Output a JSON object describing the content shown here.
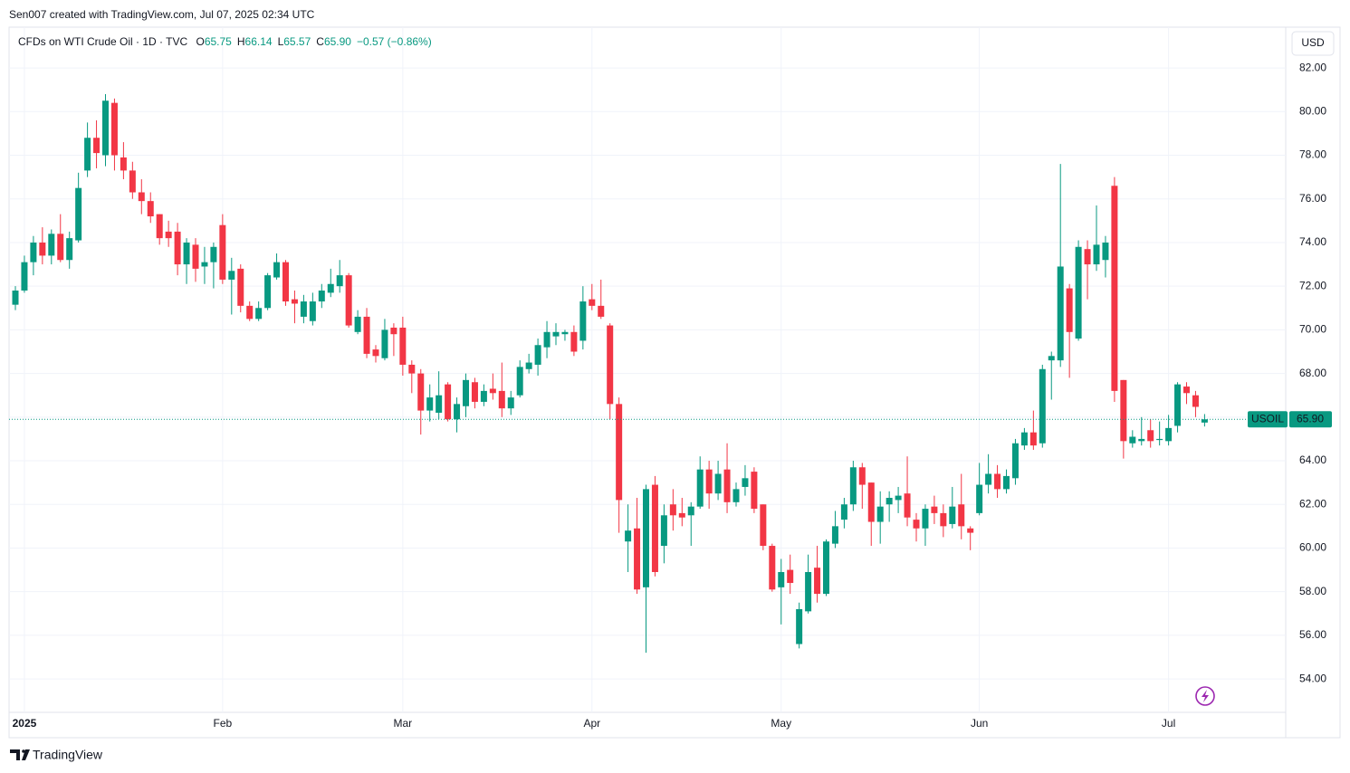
{
  "header": {
    "attribution": "Sen007 created with TradingView.com, Jul 07, 2025 02:34 UTC",
    "symbol": "CFDs on WTI Crude Oil · 1D · TVC",
    "legend": [
      {
        "key": "O",
        "text": "65.75"
      },
      {
        "key": "H",
        "text": "66.14"
      },
      {
        "key": "L",
        "text": "65.57"
      },
      {
        "key": "C",
        "text": "65.90"
      }
    ],
    "change": "−0.57 (−0.86%)",
    "currency": "USD",
    "brand": "TradingView"
  },
  "chart_data": {
    "type": "candlestick",
    "categories": [
      null,
      "2025",
      null,
      null,
      null,
      null,
      null,
      null,
      null,
      null,
      null,
      null,
      null,
      null,
      null,
      null,
      null,
      null,
      null,
      null,
      null,
      null,
      null,
      "Feb",
      null,
      null,
      null,
      null,
      null,
      null,
      null,
      null,
      null,
      null,
      null,
      null,
      null,
      null,
      null,
      null,
      null,
      null,
      null,
      "Mar",
      null,
      null,
      null,
      null,
      null,
      null,
      null,
      null,
      null,
      null,
      null,
      null,
      null,
      null,
      null,
      null,
      null,
      null,
      null,
      null,
      "Apr",
      null,
      null,
      null,
      null,
      null,
      null,
      null,
      null,
      null,
      null,
      null,
      null,
      null,
      null,
      null,
      null,
      null,
      null,
      null,
      null,
      "May",
      null,
      null,
      null,
      null,
      null,
      null,
      null,
      null,
      null,
      null,
      null,
      null,
      null,
      null,
      null,
      null,
      null,
      null,
      null,
      null,
      null,
      "Jun",
      null,
      null,
      null,
      null,
      null,
      null,
      null,
      null,
      null,
      null,
      null,
      null,
      null,
      null,
      null,
      null,
      null,
      null,
      null,
      null,
      "Jul",
      null,
      null,
      null,
      null
    ],
    "open": [
      71.15,
      71.8,
      73.1,
      74.0,
      73.4,
      74.4,
      73.2,
      74.1,
      77.3,
      78.8,
      78.0,
      80.4,
      77.9,
      77.3,
      76.3,
      75.9,
      75.3,
      74.5,
      74.5,
      73.0,
      73.9,
      72.9,
      73.1,
      74.8,
      72.3,
      72.8,
      71.1,
      70.5,
      71.0,
      72.4,
      73.1,
      71.4,
      70.6,
      70.4,
      71.3,
      71.7,
      72.0,
      72.5,
      69.9,
      70.6,
      69.1,
      68.7,
      70.1,
      70.1,
      68.4,
      68.0,
      66.3,
      66.2,
      67.5,
      65.9,
      66.5,
      67.6,
      66.7,
      67.3,
      67.2,
      66.4,
      67.0,
      68.2,
      68.4,
      69.2,
      69.7,
      69.8,
      69.9,
      69.5,
      71.4,
      71.1,
      70.2,
      66.6,
      60.3,
      60.9,
      58.2,
      62.9,
      60.1,
      62.0,
      61.6,
      61.5,
      61.9,
      63.6,
      62.5,
      63.6,
      62.1,
      62.8,
      63.5,
      62.0,
      60.1,
      58.2,
      59.0,
      55.6,
      57.1,
      59.1,
      57.9,
      60.2,
      61.3,
      62.0,
      63.7,
      63.0,
      61.2,
      62.0,
      62.2,
      62.5,
      61.3,
      60.9,
      61.9,
      61.6,
      61.1,
      62.0,
      60.9,
      61.6,
      62.9,
      63.4,
      62.7,
      63.2,
      64.7,
      65.3,
      64.8,
      68.6,
      68.6,
      71.9,
      69.6,
      73.7,
      73.0,
      73.2,
      76.6,
      67.7,
      64.8,
      64.9,
      65.4,
      64.95,
      64.9,
      65.6,
      67.4,
      67.0,
      65.75
    ],
    "high": [
      72.0,
      73.4,
      74.3,
      74.7,
      74.6,
      75.3,
      74.5,
      77.2,
      79.5,
      79.6,
      80.8,
      80.6,
      78.6,
      77.7,
      76.9,
      76.3,
      75.3,
      75.0,
      74.9,
      74.2,
      74.2,
      73.8,
      74.0,
      75.3,
      73.3,
      73.0,
      71.3,
      71.3,
      72.6,
      73.5,
      73.2,
      71.8,
      71.6,
      71.7,
      72.1,
      72.8,
      73.2,
      72.6,
      70.9,
      71.0,
      69.3,
      70.5,
      70.3,
      70.6,
      68.6,
      68.2,
      67.5,
      68.1,
      67.6,
      66.9,
      68.0,
      67.8,
      67.5,
      68.0,
      68.5,
      67.2,
      68.6,
      68.9,
      69.6,
      70.4,
      70.3,
      70.0,
      70.2,
      72.0,
      72.1,
      72.3,
      70.3,
      66.9,
      62.0,
      62.3,
      62.9,
      63.3,
      62.0,
      62.7,
      62.3,
      62.1,
      64.2,
      64.0,
      64.0,
      64.8,
      63.0,
      63.8,
      63.7,
      62.0,
      60.2,
      59.5,
      59.7,
      57.5,
      59.7,
      60.1,
      60.4,
      61.7,
      62.3,
      64.0,
      63.9,
      63.0,
      62.6,
      62.6,
      62.8,
      64.2,
      61.6,
      62.0,
      62.4,
      62.0,
      62.8,
      63.4,
      61.0,
      63.9,
      64.3,
      63.8,
      63.6,
      65.0,
      65.5,
      66.3,
      68.4,
      69.0,
      77.6,
      72.1,
      74.1,
      74.1,
      75.7,
      74.3,
      77.0,
      67.7,
      65.4,
      66.0,
      65.9,
      65.8,
      66.1,
      67.6,
      67.6,
      67.2,
      66.14
    ],
    "low": [
      70.9,
      71.7,
      72.5,
      73.0,
      73.0,
      73.1,
      72.8,
      74.0,
      77.0,
      77.4,
      77.5,
      77.3,
      76.9,
      76.0,
      75.3,
      74.9,
      73.9,
      73.8,
      72.5,
      72.1,
      72.2,
      72.1,
      71.9,
      72.1,
      70.7,
      70.8,
      70.4,
      70.4,
      70.9,
      72.3,
      71.1,
      70.3,
      70.3,
      70.2,
      71.0,
      71.5,
      71.7,
      70.1,
      69.8,
      68.7,
      68.5,
      68.6,
      68.8,
      67.9,
      67.1,
      65.2,
      65.8,
      65.9,
      65.8,
      65.3,
      66.0,
      66.4,
      66.5,
      66.8,
      66.0,
      66.1,
      66.9,
      68.0,
      67.9,
      68.7,
      69.3,
      69.5,
      68.8,
      69.1,
      70.9,
      70.5,
      65.9,
      60.7,
      58.9,
      57.9,
      55.2,
      58.7,
      59.3,
      60.8,
      61.0,
      60.1,
      61.8,
      61.8,
      62.2,
      61.6,
      61.9,
      62.4,
      61.6,
      59.9,
      58.0,
      56.5,
      57.9,
      55.4,
      57.0,
      57.5,
      57.8,
      60.0,
      60.9,
      61.7,
      61.8,
      60.1,
      60.2,
      61.2,
      61.6,
      61.0,
      60.3,
      60.1,
      61.1,
      60.5,
      60.9,
      60.4,
      59.9,
      61.5,
      62.5,
      62.3,
      62.5,
      62.9,
      64.5,
      64.5,
      64.6,
      66.8,
      68.3,
      67.8,
      69.5,
      71.4,
      72.7,
      72.4,
      66.7,
      64.1,
      64.6,
      64.7,
      64.6,
      64.7,
      64.7,
      65.3,
      66.6,
      66.0,
      65.57
    ],
    "close": [
      71.8,
      73.1,
      74.0,
      73.4,
      74.4,
      73.2,
      74.2,
      76.5,
      78.8,
      78.1,
      80.5,
      78.0,
      77.3,
      76.3,
      75.9,
      75.2,
      74.2,
      74.2,
      73.0,
      74.0,
      72.8,
      73.1,
      73.8,
      72.3,
      72.7,
      71.1,
      70.5,
      71.0,
      72.5,
      73.1,
      71.3,
      71.2,
      71.3,
      71.3,
      71.8,
      72.1,
      72.5,
      70.2,
      70.6,
      68.9,
      68.8,
      70.0,
      69.8,
      68.4,
      68.0,
      66.3,
      66.9,
      67.0,
      65.9,
      66.6,
      67.7,
      66.7,
      67.2,
      67.1,
      66.4,
      66.9,
      68.3,
      68.5,
      69.3,
      69.9,
      69.9,
      69.9,
      69.0,
      71.3,
      71.1,
      70.6,
      66.6,
      62.2,
      60.8,
      58.1,
      62.7,
      58.9,
      61.5,
      61.5,
      61.4,
      61.9,
      63.6,
      62.5,
      63.4,
      62.1,
      62.7,
      63.2,
      61.8,
      60.1,
      58.1,
      58.9,
      58.4,
      57.2,
      58.9,
      57.9,
      60.3,
      61.0,
      62.0,
      63.7,
      62.9,
      61.2,
      61.9,
      62.3,
      62.4,
      61.4,
      60.9,
      61.8,
      61.6,
      61.0,
      61.9,
      61.0,
      60.7,
      62.9,
      63.4,
      62.7,
      63.3,
      64.8,
      65.3,
      64.7,
      68.2,
      68.8,
      72.9,
      69.9,
      73.8,
      73.0,
      73.9,
      74.0,
      67.2,
      64.9,
      65.1,
      65.0,
      64.9,
      65.0,
      65.5,
      67.5,
      67.1,
      66.47,
      65.9
    ],
    "series_name": "USOIL",
    "last_price_label": "65.90",
    "up_color": "#089981",
    "down_color": "#f23645",
    "ylim": [
      52.47,
      83.87
    ],
    "yticks": [
      {
        "value": 54,
        "label": "54.00"
      },
      {
        "value": 56,
        "label": "56.00"
      },
      {
        "value": 58,
        "label": "58.00"
      },
      {
        "value": 60,
        "label": "60.00"
      },
      {
        "value": 62,
        "label": "62.00"
      },
      {
        "value": 64,
        "label": "64.00"
      },
      {
        "value": 66,
        "label": "66.00"
      },
      {
        "value": 68,
        "label": "68.00"
      },
      {
        "value": 70,
        "label": "70.00"
      },
      {
        "value": 72,
        "label": "72.00"
      },
      {
        "value": 74,
        "label": "74.00"
      },
      {
        "value": 76,
        "label": "76.00"
      },
      {
        "value": 78,
        "label": "78.00"
      },
      {
        "value": 80,
        "label": "80.00"
      },
      {
        "value": 82,
        "label": "82.00"
      }
    ],
    "grid": true
  }
}
